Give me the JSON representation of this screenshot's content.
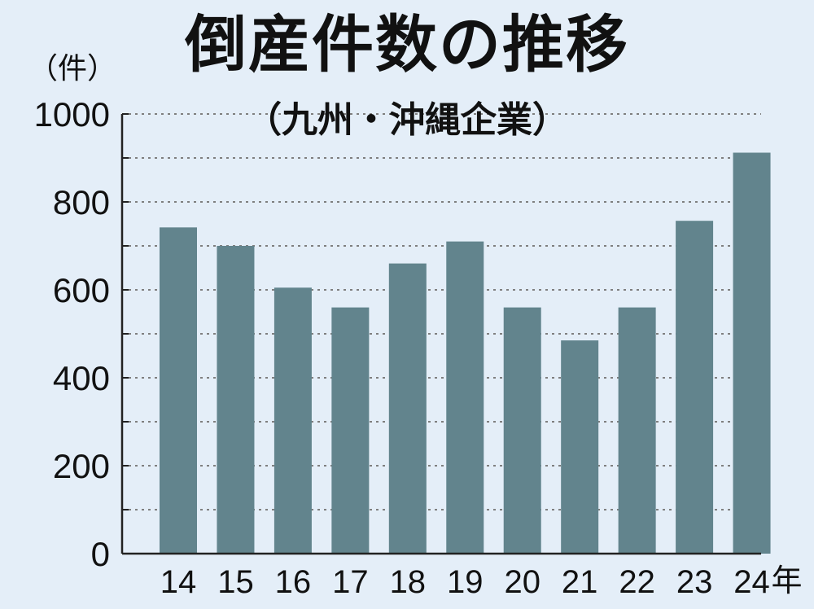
{
  "chart_data": {
    "type": "bar",
    "title": "倒産件数の推移",
    "subtitle": "（九州・沖縄企業）",
    "ylabel": "（件）",
    "xlabel_suffix": "年",
    "categories": [
      "14",
      "15",
      "16",
      "17",
      "18",
      "19",
      "20",
      "21",
      "22",
      "23",
      "24"
    ],
    "values": [
      742,
      700,
      605,
      560,
      660,
      710,
      560,
      485,
      560,
      757,
      912
    ],
    "ylim": [
      0,
      1000
    ],
    "yticks": [
      0,
      200,
      400,
      600,
      800,
      1000
    ],
    "grid": "dotted",
    "colors": {
      "background": "#e4eef8",
      "bar": "#62848d",
      "grid": "#7f7f7f",
      "axis": "#222222",
      "text": "#111111"
    }
  }
}
